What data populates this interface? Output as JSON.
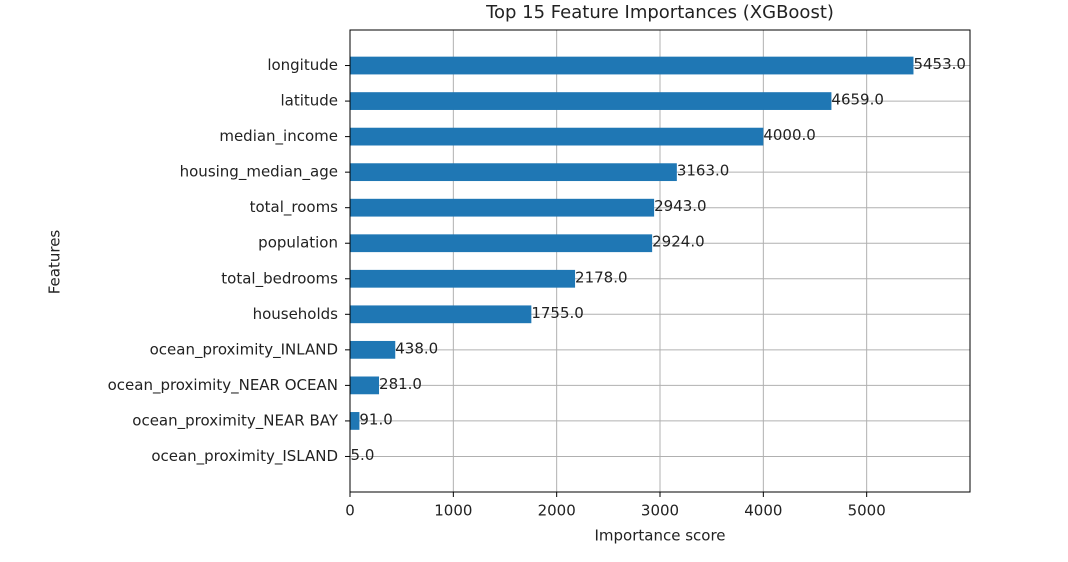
{
  "chart_data": {
    "type": "barh",
    "title": "Top 15 Feature Importances (XGBoost)",
    "xlabel": "Importance score",
    "ylabel": "Features",
    "categories": [
      "longitude",
      "latitude",
      "median_income",
      "housing_median_age",
      "total_rooms",
      "population",
      "total_bedrooms",
      "households",
      "ocean_proximity_INLAND",
      "ocean_proximity_NEAR OCEAN",
      "ocean_proximity_NEAR BAY",
      "ocean_proximity_ISLAND"
    ],
    "values": [
      5453,
      4659,
      4000,
      3163,
      2943,
      2924,
      2178,
      1755,
      438,
      281,
      91,
      5
    ],
    "value_labels": [
      "5453.0",
      "4659.0",
      "4000.0",
      "3163.0",
      "2943.0",
      "2924.0",
      "2178.0",
      "1755.0",
      "438.0",
      "281.0",
      "91.0",
      "5.0"
    ],
    "color": "#1f77b4",
    "xlim": [
      0,
      6000
    ],
    "xticks": [
      0,
      1000,
      2000,
      3000,
      4000,
      5000
    ],
    "grid": true
  }
}
